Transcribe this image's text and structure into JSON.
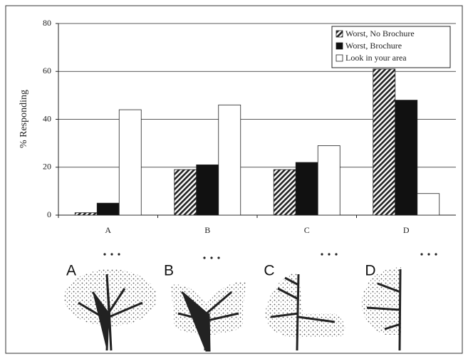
{
  "chart_data": {
    "type": "bar",
    "y_label": "% Responding",
    "categories": [
      "A",
      "B",
      "C",
      "D"
    ],
    "series": [
      {
        "name": "Worst, No Brochure",
        "color": "#222222",
        "fill": "hatch",
        "values": [
          1,
          19,
          19,
          61
        ]
      },
      {
        "name": "Worst, Brochure",
        "color": "#111111",
        "fill": "solid",
        "values": [
          5,
          21,
          22,
          48
        ]
      },
      {
        "name": "Look in your area",
        "color": "#ffffff",
        "fill": "solid",
        "values": [
          44,
          46,
          29,
          9
        ]
      }
    ],
    "ylim": [
      0,
      80
    ],
    "yticks": [
      0,
      20,
      40,
      60,
      80
    ],
    "grid": true,
    "legend": "top-right"
  },
  "tree_labels": [
    "A",
    "B",
    "C",
    "D"
  ]
}
